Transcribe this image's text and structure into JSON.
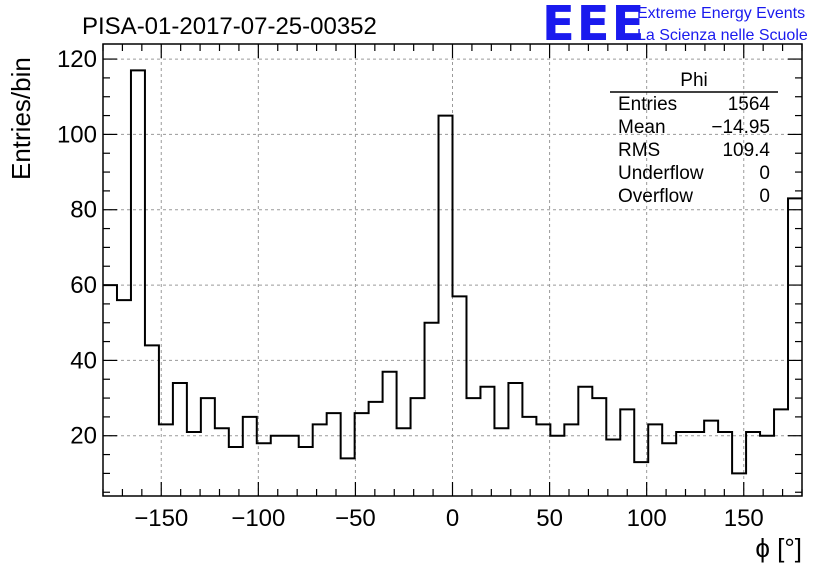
{
  "title": "PISA-01-2017-07-25-00352",
  "logo": {
    "mark": "EEE",
    "line1": "Extreme Energy Events",
    "line2": "La Scienza nelle Scuole",
    "color": "#1a1aee"
  },
  "stats": {
    "name": "Phi",
    "rows": [
      {
        "label": "Entries",
        "value": "1564"
      },
      {
        "label": "Mean",
        "value": "−14.95"
      },
      {
        "label": "RMS",
        "value": "109.4"
      },
      {
        "label": "Underflow",
        "value": "0"
      },
      {
        "label": "Overflow",
        "value": "0"
      }
    ]
  },
  "chart_data": {
    "type": "bar",
    "title": "PISA-01-2017-07-25-00352",
    "xlabel": "ϕ [°]",
    "ylabel": "Entries/bin",
    "xlim": [
      -180,
      180
    ],
    "ylim": [
      4,
      124
    ],
    "grid": true,
    "xticks": [
      -150,
      -100,
      -50,
      0,
      50,
      100,
      150
    ],
    "xticklabels": [
      "−150",
      "−100",
      "−50",
      "0",
      "50",
      "100",
      "150"
    ],
    "yticks": [
      20,
      40,
      60,
      80,
      100,
      120
    ],
    "yticklabels": [
      "20",
      "40",
      "60",
      "80",
      "100",
      "120"
    ],
    "bin_width": 7.2,
    "bin_edges_start": -180,
    "values": [
      60,
      56,
      117,
      44,
      23,
      34,
      21,
      30,
      22,
      17,
      25,
      18,
      20,
      20,
      17,
      23,
      26,
      14,
      26,
      29,
      37,
      22,
      30,
      50,
      105,
      57,
      30,
      33,
      22,
      34,
      25,
      23,
      20,
      23,
      33,
      30,
      19,
      27,
      13,
      23,
      18,
      21,
      21,
      24,
      21,
      10,
      21,
      20,
      27,
      83
    ]
  }
}
